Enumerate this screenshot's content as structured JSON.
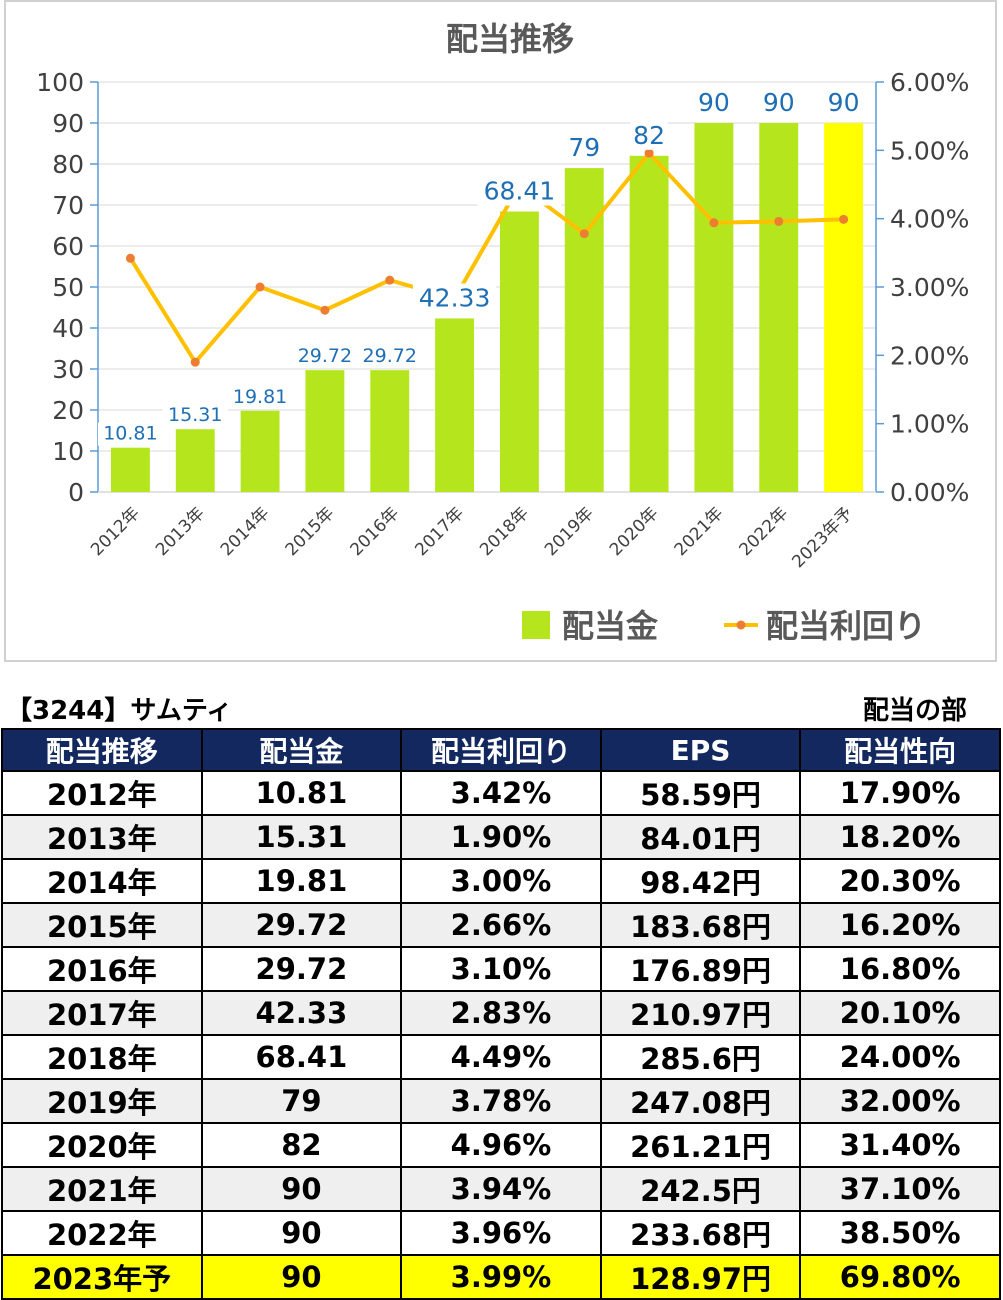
{
  "chart_data": {
    "type": "bar",
    "title": "配当推移",
    "categories": [
      "2012年",
      "2013年",
      "2014年",
      "2015年",
      "2016年",
      "2017年",
      "2018年",
      "2019年",
      "2020年",
      "2021年",
      "2022年",
      "2023年予"
    ],
    "series": [
      {
        "name": "配当金",
        "kind": "bar",
        "axis": "left",
        "values": [
          10.81,
          15.31,
          19.81,
          29.72,
          29.72,
          42.33,
          68.41,
          79,
          82,
          90,
          90,
          90
        ],
        "labels": [
          "10.81",
          "15.31",
          "19.81",
          "29.72",
          "29.72",
          "42.33",
          "68.41",
          "79",
          "82",
          "90",
          "90",
          "90"
        ]
      },
      {
        "name": "配当利回り",
        "kind": "line",
        "axis": "right",
        "values": [
          3.42,
          1.9,
          3.0,
          2.66,
          3.1,
          2.83,
          4.49,
          3.78,
          4.96,
          3.94,
          3.96,
          3.99
        ]
      }
    ],
    "ylim": [
      0,
      100
    ],
    "yticks": [
      "0",
      "10",
      "20",
      "30",
      "40",
      "50",
      "60",
      "70",
      "80",
      "90",
      "100"
    ],
    "y2lim": [
      0,
      6
    ],
    "y2ticks": [
      "0.00%",
      "1.00%",
      "2.00%",
      "3.00%",
      "4.00%",
      "5.00%",
      "6.00%"
    ],
    "grid": true,
    "legend": "bottom-right",
    "colors": {
      "bar": "#b5e61d",
      "bar_forecast": "#ffff00",
      "line": "#ffc000",
      "marker": "#ed7d31",
      "label": "#1f6fb5"
    }
  },
  "table": {
    "company": "【3244】サムティ",
    "section": "配当の部",
    "headers": [
      "配当推移",
      "配当金",
      "配当利回り",
      "EPS",
      "配当性向"
    ],
    "rows": [
      [
        "2012年",
        "10.81",
        "3.42%",
        "58.59円",
        "17.90%"
      ],
      [
        "2013年",
        "15.31",
        "1.90%",
        "84.01円",
        "18.20%"
      ],
      [
        "2014年",
        "19.81",
        "3.00%",
        "98.42円",
        "20.30%"
      ],
      [
        "2015年",
        "29.72",
        "2.66%",
        "183.68円",
        "16.20%"
      ],
      [
        "2016年",
        "29.72",
        "3.10%",
        "176.89円",
        "16.80%"
      ],
      [
        "2017年",
        "42.33",
        "2.83%",
        "210.97円",
        "20.10%"
      ],
      [
        "2018年",
        "68.41",
        "4.49%",
        "285.6円",
        "24.00%"
      ],
      [
        "2019年",
        "79",
        "3.78%",
        "247.08円",
        "32.00%"
      ],
      [
        "2020年",
        "82",
        "4.96%",
        "261.21円",
        "31.40%"
      ],
      [
        "2021年",
        "90",
        "3.94%",
        "242.5円",
        "37.10%"
      ],
      [
        "2022年",
        "90",
        "3.96%",
        "233.68円",
        "38.50%"
      ],
      [
        "2023年予",
        "90",
        "3.99%",
        "128.97円",
        "69.80%"
      ]
    ]
  }
}
